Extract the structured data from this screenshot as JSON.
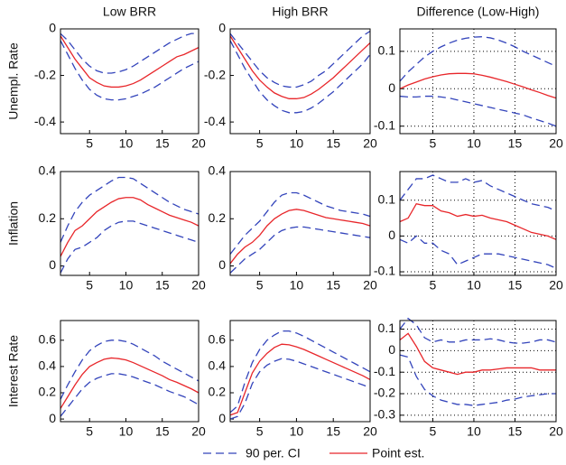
{
  "chart_data": [
    {
      "type": "line",
      "title": "Low BRR",
      "ylabel": "Unempl. Rate",
      "x": [
        1,
        2,
        3,
        4,
        5,
        6,
        7,
        8,
        9,
        10,
        11,
        12,
        13,
        14,
        15,
        16,
        17,
        18,
        19,
        20
      ],
      "xlim": [
        1,
        20
      ],
      "xticks": [
        5,
        10,
        15,
        20
      ],
      "ylim": [
        -0.45,
        0
      ],
      "yticks": [
        -0.4,
        -0.2,
        0
      ],
      "grid": false,
      "series": [
        {
          "color": "#3344bb",
          "dashed": true,
          "values": [
            -0.05,
            -0.11,
            -0.17,
            -0.22,
            -0.26,
            -0.285,
            -0.3,
            -0.305,
            -0.305,
            -0.3,
            -0.29,
            -0.28,
            -0.265,
            -0.25,
            -0.23,
            -0.21,
            -0.19,
            -0.17,
            -0.155,
            -0.14
          ]
        },
        {
          "color": "#e8262a",
          "dashed": false,
          "values": [
            -0.03,
            -0.08,
            -0.13,
            -0.17,
            -0.21,
            -0.23,
            -0.245,
            -0.25,
            -0.25,
            -0.245,
            -0.235,
            -0.22,
            -0.2,
            -0.18,
            -0.16,
            -0.14,
            -0.12,
            -0.11,
            -0.095,
            -0.08
          ]
        },
        {
          "color": "#3344bb",
          "dashed": true,
          "values": [
            -0.02,
            -0.05,
            -0.09,
            -0.13,
            -0.16,
            -0.18,
            -0.19,
            -0.19,
            -0.185,
            -0.175,
            -0.16,
            -0.14,
            -0.12,
            -0.1,
            -0.08,
            -0.06,
            -0.045,
            -0.03,
            -0.02,
            -0.02
          ]
        }
      ]
    },
    {
      "type": "line",
      "title": "High BRR",
      "x": [
        1,
        2,
        3,
        4,
        5,
        6,
        7,
        8,
        9,
        10,
        11,
        12,
        13,
        14,
        15,
        16,
        17,
        18,
        19,
        20
      ],
      "xlim": [
        1,
        20
      ],
      "xticks": [
        5,
        10,
        15,
        20
      ],
      "ylim": [
        -0.45,
        0
      ],
      "yticks": [
        -0.4,
        -0.2,
        0
      ],
      "grid": false,
      "series": [
        {
          "color": "#3344bb",
          "dashed": true,
          "values": [
            -0.05,
            -0.11,
            -0.17,
            -0.22,
            -0.27,
            -0.305,
            -0.33,
            -0.35,
            -0.36,
            -0.36,
            -0.355,
            -0.34,
            -0.32,
            -0.295,
            -0.27,
            -0.24,
            -0.21,
            -0.18,
            -0.15,
            -0.11
          ]
        },
        {
          "color": "#e8262a",
          "dashed": false,
          "values": [
            -0.03,
            -0.08,
            -0.13,
            -0.18,
            -0.22,
            -0.25,
            -0.275,
            -0.29,
            -0.3,
            -0.3,
            -0.295,
            -0.28,
            -0.26,
            -0.235,
            -0.21,
            -0.18,
            -0.15,
            -0.12,
            -0.09,
            -0.06
          ]
        },
        {
          "color": "#3344bb",
          "dashed": true,
          "values": [
            -0.02,
            -0.06,
            -0.1,
            -0.14,
            -0.18,
            -0.21,
            -0.23,
            -0.245,
            -0.25,
            -0.25,
            -0.24,
            -0.225,
            -0.2,
            -0.18,
            -0.15,
            -0.12,
            -0.09,
            -0.06,
            -0.03,
            -0.01
          ]
        }
      ]
    },
    {
      "type": "line",
      "title": "Difference (Low-High)",
      "x": [
        1,
        2,
        3,
        4,
        5,
        6,
        7,
        8,
        9,
        10,
        11,
        12,
        13,
        14,
        15,
        16,
        17,
        18,
        19,
        20
      ],
      "xlim": [
        1,
        20
      ],
      "xticks": [
        5,
        10,
        15,
        20
      ],
      "ylim": [
        -0.12,
        0.16
      ],
      "yticks": [
        -0.1,
        0,
        0.1
      ],
      "grid": true,
      "series": [
        {
          "color": "#3344bb",
          "dashed": true,
          "values": [
            -0.02,
            -0.022,
            -0.022,
            -0.02,
            -0.02,
            -0.022,
            -0.025,
            -0.03,
            -0.035,
            -0.04,
            -0.045,
            -0.05,
            -0.055,
            -0.06,
            -0.065,
            -0.07,
            -0.078,
            -0.085,
            -0.092,
            -0.1
          ]
        },
        {
          "color": "#e8262a",
          "dashed": false,
          "values": [
            0,
            0.01,
            0.018,
            0.026,
            0.032,
            0.037,
            0.04,
            0.041,
            0.041,
            0.04,
            0.036,
            0.031,
            0.025,
            0.019,
            0.012,
            0.005,
            -0.003,
            -0.01,
            -0.018,
            -0.025
          ]
        },
        {
          "color": "#3344bb",
          "dashed": true,
          "values": [
            0.02,
            0.045,
            0.065,
            0.085,
            0.1,
            0.112,
            0.122,
            0.13,
            0.135,
            0.138,
            0.139,
            0.136,
            0.13,
            0.122,
            0.112,
            0.1,
            0.09,
            0.08,
            0.07,
            0.06
          ]
        }
      ]
    },
    {
      "type": "line",
      "ylabel": "Inflation",
      "x": [
        1,
        2,
        3,
        4,
        5,
        6,
        7,
        8,
        9,
        10,
        11,
        12,
        13,
        14,
        15,
        16,
        17,
        18,
        19,
        20
      ],
      "xlim": [
        1,
        20
      ],
      "xticks": [
        5,
        10,
        15,
        20
      ],
      "ylim": [
        -0.04,
        0.4
      ],
      "yticks": [
        0,
        0.2,
        0.4
      ],
      "grid": false,
      "series": [
        {
          "color": "#3344bb",
          "dashed": true,
          "values": [
            -0.03,
            0.03,
            0.07,
            0.08,
            0.1,
            0.12,
            0.15,
            0.17,
            0.185,
            0.19,
            0.19,
            0.18,
            0.17,
            0.16,
            0.15,
            0.14,
            0.13,
            0.12,
            0.11,
            0.1
          ]
        },
        {
          "color": "#e8262a",
          "dashed": false,
          "values": [
            0.04,
            0.1,
            0.15,
            0.17,
            0.2,
            0.23,
            0.25,
            0.27,
            0.285,
            0.29,
            0.29,
            0.28,
            0.26,
            0.245,
            0.23,
            0.215,
            0.205,
            0.195,
            0.185,
            0.17
          ]
        },
        {
          "color": "#3344bb",
          "dashed": true,
          "values": [
            0.1,
            0.17,
            0.23,
            0.27,
            0.3,
            0.32,
            0.34,
            0.36,
            0.375,
            0.375,
            0.37,
            0.35,
            0.33,
            0.31,
            0.29,
            0.27,
            0.255,
            0.24,
            0.23,
            0.22
          ]
        }
      ]
    },
    {
      "type": "line",
      "x": [
        1,
        2,
        3,
        4,
        5,
        6,
        7,
        8,
        9,
        10,
        11,
        12,
        13,
        14,
        15,
        16,
        17,
        18,
        19,
        20
      ],
      "xlim": [
        1,
        20
      ],
      "xticks": [
        5,
        10,
        15,
        20
      ],
      "ylim": [
        -0.04,
        0.4
      ],
      "yticks": [
        0,
        0.2,
        0.4
      ],
      "grid": false,
      "series": [
        {
          "color": "#3344bb",
          "dashed": true,
          "values": [
            -0.03,
            0,
            0.03,
            0.05,
            0.07,
            0.1,
            0.13,
            0.15,
            0.16,
            0.165,
            0.165,
            0.16,
            0.155,
            0.15,
            0.145,
            0.14,
            0.135,
            0.13,
            0.125,
            0.12
          ]
        },
        {
          "color": "#e8262a",
          "dashed": false,
          "values": [
            0.01,
            0.05,
            0.08,
            0.1,
            0.13,
            0.17,
            0.2,
            0.22,
            0.235,
            0.24,
            0.235,
            0.225,
            0.215,
            0.205,
            0.2,
            0.195,
            0.19,
            0.185,
            0.18,
            0.17
          ]
        },
        {
          "color": "#3344bb",
          "dashed": true,
          "values": [
            0.05,
            0.09,
            0.13,
            0.16,
            0.19,
            0.23,
            0.27,
            0.3,
            0.31,
            0.31,
            0.3,
            0.285,
            0.27,
            0.255,
            0.245,
            0.235,
            0.23,
            0.225,
            0.22,
            0.21
          ]
        }
      ]
    },
    {
      "type": "line",
      "x": [
        1,
        2,
        3,
        4,
        5,
        6,
        7,
        8,
        9,
        10,
        11,
        12,
        13,
        14,
        15,
        16,
        17,
        18,
        19,
        20
      ],
      "xlim": [
        1,
        20
      ],
      "xticks": [
        5,
        10,
        15,
        20
      ],
      "ylim": [
        -0.11,
        0.18
      ],
      "yticks": [
        -0.1,
        0,
        0.1
      ],
      "grid": true,
      "series": [
        {
          "color": "#3344bb",
          "dashed": true,
          "values": [
            -0.01,
            -0.02,
            0,
            -0.02,
            -0.02,
            -0.04,
            -0.05,
            -0.08,
            -0.07,
            -0.06,
            -0.05,
            -0.05,
            -0.05,
            -0.055,
            -0.06,
            -0.065,
            -0.07,
            -0.075,
            -0.08,
            -0.09
          ]
        },
        {
          "color": "#e8262a",
          "dashed": false,
          "values": [
            0.04,
            0.05,
            0.09,
            0.085,
            0.085,
            0.07,
            0.065,
            0.055,
            0.06,
            0.055,
            0.058,
            0.05,
            0.045,
            0.04,
            0.03,
            0.02,
            0.01,
            0.005,
            0,
            -0.01
          ]
        },
        {
          "color": "#3344bb",
          "dashed": true,
          "values": [
            0.1,
            0.13,
            0.16,
            0.16,
            0.17,
            0.16,
            0.15,
            0.15,
            0.16,
            0.15,
            0.155,
            0.14,
            0.13,
            0.12,
            0.11,
            0.1,
            0.09,
            0.085,
            0.08,
            0.07
          ]
        }
      ]
    },
    {
      "type": "line",
      "ylabel": "Interest Rate",
      "x": [
        1,
        2,
        3,
        4,
        5,
        6,
        7,
        8,
        9,
        10,
        11,
        12,
        13,
        14,
        15,
        16,
        17,
        18,
        19,
        20
      ],
      "xlim": [
        1,
        20
      ],
      "xticks": [
        5,
        10,
        15,
        20
      ],
      "ylim": [
        -0.02,
        0.75
      ],
      "yticks": [
        0,
        0.2,
        0.4,
        0.6
      ],
      "grid": false,
      "series": [
        {
          "color": "#3344bb",
          "dashed": true,
          "values": [
            0.02,
            0.09,
            0.16,
            0.23,
            0.28,
            0.31,
            0.33,
            0.345,
            0.345,
            0.335,
            0.32,
            0.3,
            0.28,
            0.26,
            0.235,
            0.21,
            0.19,
            0.17,
            0.14,
            0.11
          ]
        },
        {
          "color": "#e8262a",
          "dashed": false,
          "values": [
            0.08,
            0.17,
            0.26,
            0.34,
            0.4,
            0.43,
            0.455,
            0.465,
            0.46,
            0.45,
            0.43,
            0.405,
            0.38,
            0.355,
            0.33,
            0.3,
            0.28,
            0.255,
            0.23,
            0.2
          ]
        },
        {
          "color": "#3344bb",
          "dashed": true,
          "values": [
            0.15,
            0.26,
            0.36,
            0.45,
            0.52,
            0.56,
            0.59,
            0.6,
            0.6,
            0.59,
            0.57,
            0.54,
            0.51,
            0.48,
            0.44,
            0.41,
            0.38,
            0.35,
            0.32,
            0.29
          ]
        }
      ]
    },
    {
      "type": "line",
      "x": [
        1,
        2,
        3,
        4,
        5,
        6,
        7,
        8,
        9,
        10,
        11,
        12,
        13,
        14,
        15,
        16,
        17,
        18,
        19,
        20
      ],
      "xlim": [
        1,
        20
      ],
      "xticks": [
        5,
        10,
        15,
        20
      ],
      "ylim": [
        -0.02,
        0.75
      ],
      "yticks": [
        0,
        0.2,
        0.4,
        0.6
      ],
      "grid": false,
      "series": [
        {
          "color": "#3344bb",
          "dashed": true,
          "values": [
            0,
            0.02,
            0.12,
            0.27,
            0.36,
            0.41,
            0.44,
            0.46,
            0.455,
            0.44,
            0.42,
            0.4,
            0.38,
            0.36,
            0.34,
            0.32,
            0.3,
            0.28,
            0.26,
            0.24
          ]
        },
        {
          "color": "#e8262a",
          "dashed": false,
          "values": [
            0.03,
            0.05,
            0.2,
            0.35,
            0.44,
            0.5,
            0.545,
            0.57,
            0.565,
            0.55,
            0.53,
            0.505,
            0.48,
            0.455,
            0.43,
            0.405,
            0.38,
            0.355,
            0.33,
            0.3
          ]
        },
        {
          "color": "#3344bb",
          "dashed": true,
          "values": [
            0.05,
            0.1,
            0.28,
            0.43,
            0.53,
            0.6,
            0.64,
            0.67,
            0.67,
            0.655,
            0.63,
            0.6,
            0.57,
            0.54,
            0.51,
            0.48,
            0.45,
            0.42,
            0.39,
            0.36
          ]
        }
      ]
    },
    {
      "type": "line",
      "x": [
        1,
        2,
        3,
        4,
        5,
        6,
        7,
        8,
        9,
        10,
        11,
        12,
        13,
        14,
        15,
        16,
        17,
        18,
        19,
        20
      ],
      "xlim": [
        1,
        20
      ],
      "xticks": [
        5,
        10,
        15,
        20
      ],
      "ylim": [
        -0.33,
        0.14
      ],
      "yticks": [
        -0.3,
        -0.2,
        -0.1,
        0,
        0.1
      ],
      "grid": true,
      "series": [
        {
          "color": "#3344bb",
          "dashed": true,
          "values": [
            -0.02,
            -0.03,
            -0.12,
            -0.18,
            -0.21,
            -0.23,
            -0.24,
            -0.25,
            -0.25,
            -0.255,
            -0.25,
            -0.245,
            -0.24,
            -0.23,
            -0.225,
            -0.215,
            -0.21,
            -0.205,
            -0.2,
            -0.2
          ]
        },
        {
          "color": "#e8262a",
          "dashed": false,
          "values": [
            0.05,
            0.08,
            0.02,
            -0.05,
            -0.08,
            -0.09,
            -0.1,
            -0.11,
            -0.1,
            -0.1,
            -0.09,
            -0.09,
            -0.085,
            -0.08,
            -0.08,
            -0.08,
            -0.08,
            -0.09,
            -0.09,
            -0.09
          ]
        },
        {
          "color": "#3344bb",
          "dashed": true,
          "values": [
            0.1,
            0.15,
            0.12,
            0.06,
            0.04,
            0.05,
            0.04,
            0.04,
            0.05,
            0.05,
            0.05,
            0.055,
            0.05,
            0.04,
            0.035,
            0.035,
            0.04,
            0.05,
            0.05,
            0.04
          ]
        }
      ]
    }
  ],
  "legend": [
    {
      "name": "90 per. CI",
      "color": "#3344bb",
      "dashed": true
    },
    {
      "name": "Point est.",
      "color": "#e8262a",
      "dashed": false
    }
  ]
}
